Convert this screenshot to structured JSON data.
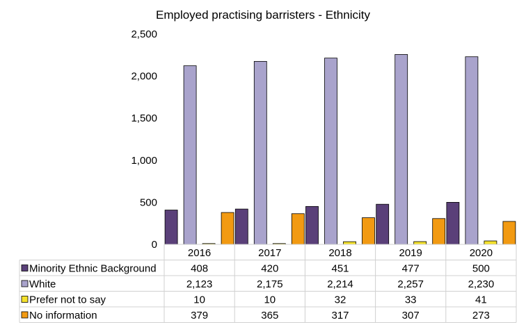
{
  "chart_data": {
    "type": "bar",
    "title": "Employed practising barristers - Ethnicity",
    "categories": [
      "2016",
      "2017",
      "2018",
      "2019",
      "2020"
    ],
    "ylim": [
      0,
      2500
    ],
    "yticks": [
      0,
      500,
      1000,
      1500,
      2000,
      2500
    ],
    "ytick_labels": [
      "0",
      "500",
      "1,000",
      "1,500",
      "2,000",
      "2,500"
    ],
    "grid": false,
    "legend": "data-table-below",
    "series": [
      {
        "name": "Minority Ethnic Background",
        "color": "#5a4079",
        "values": [
          408,
          420,
          451,
          477,
          500
        ],
        "labels": [
          "408",
          "420",
          "451",
          "477",
          "500"
        ]
      },
      {
        "name": "White",
        "color": "#a9a3cc",
        "values": [
          2123,
          2175,
          2214,
          2257,
          2230
        ],
        "labels": [
          "2,123",
          "2,175",
          "2,214",
          "2,257",
          "2,230"
        ]
      },
      {
        "name": "Prefer not to say",
        "color": "#f4e12c",
        "values": [
          10,
          10,
          32,
          33,
          41
        ],
        "labels": [
          "10",
          "10",
          "32",
          "33",
          "41"
        ]
      },
      {
        "name": "No information",
        "color": "#f29a12",
        "values": [
          379,
          365,
          317,
          307,
          273
        ],
        "labels": [
          "379",
          "365",
          "317",
          "307",
          "273"
        ]
      }
    ]
  }
}
